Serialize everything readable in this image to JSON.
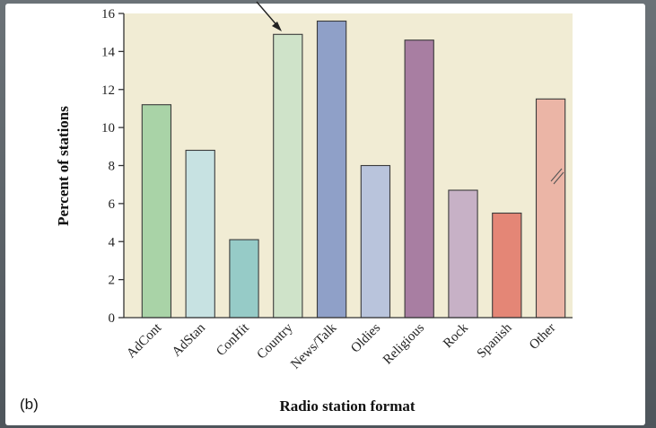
{
  "panel_label": "(b)",
  "colors": {
    "plot_bg": "#f1ecd4",
    "axis": "#333333"
  },
  "chart_data": {
    "type": "bar",
    "categories": [
      "AdCont",
      "AdStan",
      "ConHit",
      "Country",
      "News/Talk",
      "Oldies",
      "Religious",
      "Rock",
      "Spanish",
      "Other"
    ],
    "values": [
      11.2,
      8.8,
      4.1,
      14.9,
      15.6,
      8.0,
      14.6,
      6.7,
      5.5,
      11.5
    ],
    "colors": [
      "#a9d3a7",
      "#c7e2e2",
      "#96cbc7",
      "#cfe3c9",
      "#8fa0c8",
      "#b9c4dc",
      "#a87ea2",
      "#c7b1c6",
      "#e48676",
      "#ebb5a6"
    ],
    "xlabel": "Radio station format",
    "ylabel": "Percent of stations",
    "ylim": [
      0,
      16
    ],
    "yticks": [
      0,
      2,
      4,
      6,
      8,
      10,
      12,
      14,
      16
    ],
    "grid": false,
    "legend": "none"
  }
}
